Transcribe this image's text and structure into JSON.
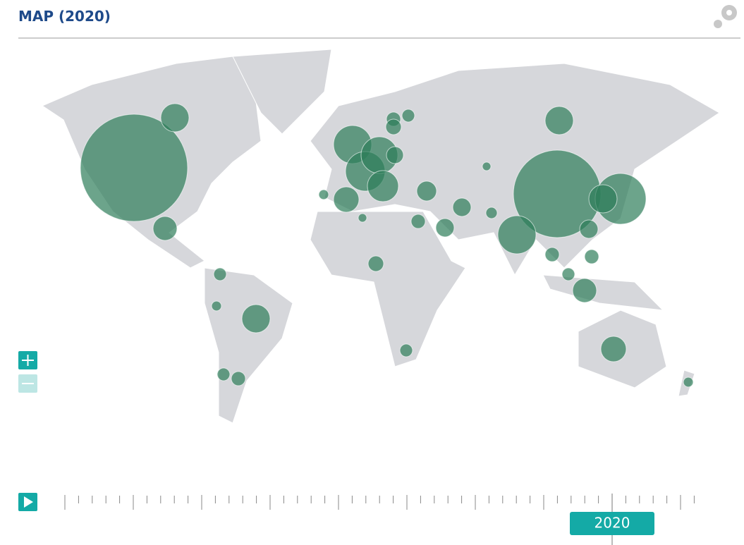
{
  "header": {
    "title": "MAP (2020)"
  },
  "timeline": {
    "current": "2020"
  },
  "bubbles": {
    "color": "#2e7d5a",
    "values": [
      1444,
      100,
      72,
      100,
      20,
      12,
      20,
      25,
      182,
      196,
      169,
      81,
      121,
      100,
      961,
      324,
      100,
      182,
      72,
      81,
      49,
      42,
      42,
      25,
      20,
      30,
      36,
      25,
      25,
      25,
      42,
      16,
      20,
      12,
      9,
      9,
      12,
      20,
      30
    ]
  }
}
